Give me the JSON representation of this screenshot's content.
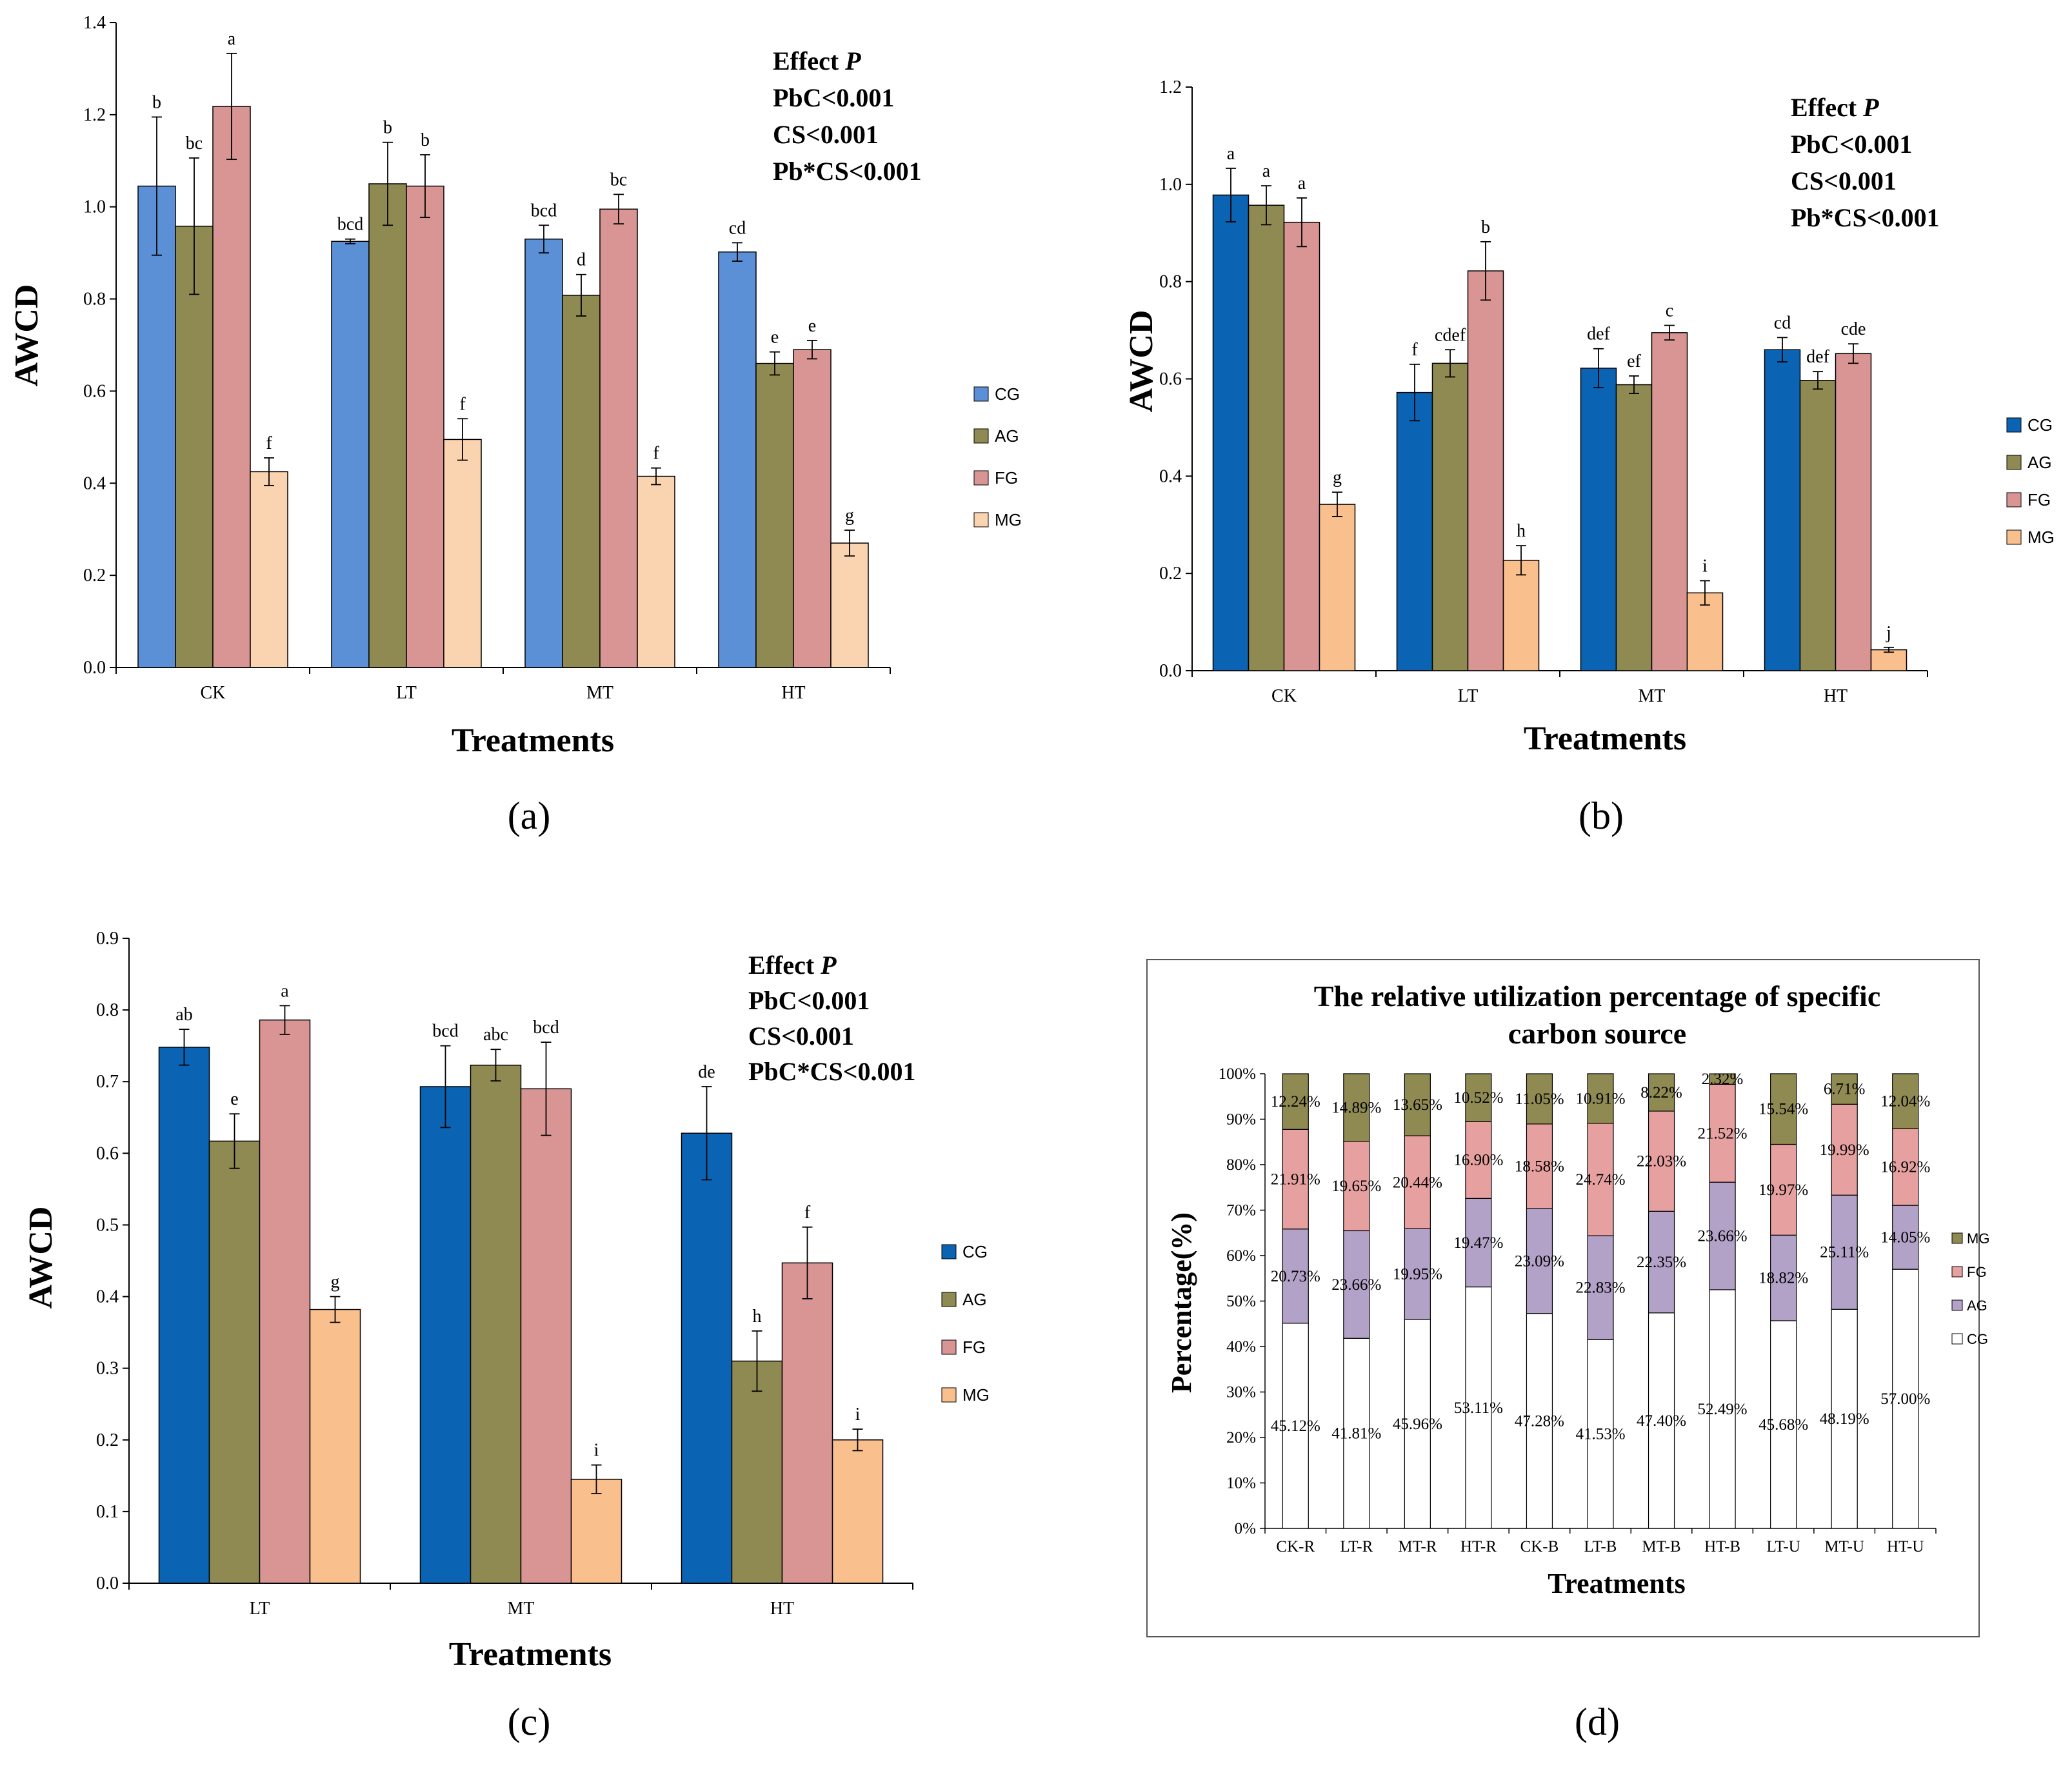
{
  "chart_data": [
    {
      "id": "a",
      "type": "bar",
      "panel_label": "(a)",
      "categories": [
        "CK",
        "LT",
        "MT",
        "HT"
      ],
      "ylabel": "AWCD",
      "xlabel": "Treatments",
      "ylim": [
        0,
        1.4
      ],
      "yticks": [
        "0.0",
        "0.2",
        "0.4",
        "0.6",
        "0.8",
        "1.0",
        "1.2",
        "1.4"
      ],
      "legend_position": "right",
      "stats_lines": [
        "Effect  P",
        "PbC<0.001",
        "CS<0.001",
        "Pb*CS<0.001"
      ],
      "series": [
        {
          "name": "CG",
          "color": "#5b8fd6",
          "values": [
            1.045,
            0.925,
            0.93,
            0.902
          ],
          "errors": [
            0.15,
            0.005,
            0.03,
            0.02
          ],
          "letters": [
            "b",
            "bcd",
            "bcd",
            "cd"
          ]
        },
        {
          "name": "AG",
          "color": "#8f8a52",
          "values": [
            0.958,
            1.05,
            0.808,
            0.66
          ],
          "errors": [
            0.148,
            0.09,
            0.045,
            0.025
          ],
          "letters": [
            "bc",
            "b",
            "d",
            "e"
          ]
        },
        {
          "name": "FG",
          "color": "#d99594",
          "values": [
            1.218,
            1.045,
            0.995,
            0.69
          ],
          "errors": [
            0.115,
            0.068,
            0.032,
            0.02
          ],
          "letters": [
            "a",
            "b",
            "bc",
            "e"
          ]
        },
        {
          "name": "MG",
          "color": "#fad4b0",
          "values": [
            0.425,
            0.495,
            0.415,
            0.27
          ],
          "errors": [
            0.03,
            0.045,
            0.018,
            0.028
          ],
          "letters": [
            "f",
            "f",
            "f",
            "g"
          ]
        }
      ]
    },
    {
      "id": "b",
      "type": "bar",
      "panel_label": "(b)",
      "categories": [
        "CK",
        "LT",
        "MT",
        "HT"
      ],
      "ylabel": "AWCD",
      "xlabel": "Treatments",
      "ylim": [
        0,
        1.2
      ],
      "yticks": [
        "0.0",
        "0.2",
        "0.4",
        "0.6",
        "0.8",
        "1.0",
        "1.2"
      ],
      "legend_position": "right",
      "stats_lines": [
        "Effect  P",
        "PbC<0.001",
        "CS<0.001",
        "Pb*CS<0.001"
      ],
      "series": [
        {
          "name": "CG",
          "color": "#0a63b3",
          "values": [
            0.978,
            0.572,
            0.622,
            0.66
          ],
          "errors": [
            0.055,
            0.058,
            0.04,
            0.025
          ],
          "letters": [
            "a",
            "f",
            "def",
            "cd"
          ]
        },
        {
          "name": "AG",
          "color": "#8f8a52",
          "values": [
            0.957,
            0.632,
            0.588,
            0.597
          ],
          "errors": [
            0.04,
            0.028,
            0.018,
            0.018
          ],
          "letters": [
            "a",
            "cdef",
            "ef",
            "def"
          ]
        },
        {
          "name": "FG",
          "color": "#d99594",
          "values": [
            0.922,
            0.822,
            0.695,
            0.652
          ],
          "errors": [
            0.05,
            0.06,
            0.015,
            0.02
          ],
          "letters": [
            "a",
            "b",
            "c",
            "cde"
          ]
        },
        {
          "name": "MG",
          "color": "#f9bf8c",
          "values": [
            0.342,
            0.227,
            0.16,
            0.043
          ],
          "errors": [
            0.025,
            0.03,
            0.025,
            0.005
          ],
          "letters": [
            "g",
            "h",
            "i",
            "j"
          ]
        }
      ]
    },
    {
      "id": "c",
      "type": "bar",
      "panel_label": "(c)",
      "categories": [
        "LT",
        "MT",
        "HT"
      ],
      "ylabel": "AWCD",
      "xlabel": "Treatments",
      "ylim": [
        0,
        0.9
      ],
      "yticks": [
        "0.0",
        "0.1",
        "0.2",
        "0.3",
        "0.4",
        "0.5",
        "0.6",
        "0.7",
        "0.8",
        "0.9"
      ],
      "legend_position": "right",
      "stats_lines": [
        "Effect  P",
        "PbC<0.001",
        "CS<0.001",
        "PbC*CS<0.001"
      ],
      "series": [
        {
          "name": "CG",
          "color": "#0a63b3",
          "values": [
            0.748,
            0.693,
            0.628
          ],
          "errors": [
            0.025,
            0.057,
            0.065
          ],
          "letters": [
            "ab",
            "bcd",
            "de"
          ]
        },
        {
          "name": "AG",
          "color": "#8f8a52",
          "values": [
            0.617,
            0.723,
            0.31
          ],
          "errors": [
            0.038,
            0.022,
            0.042
          ],
          "letters": [
            "e",
            "abc",
            "h"
          ]
        },
        {
          "name": "FG",
          "color": "#d99594",
          "values": [
            0.786,
            0.69,
            0.447
          ],
          "errors": [
            0.02,
            0.065,
            0.05
          ],
          "letters": [
            "a",
            "bcd",
            "f"
          ]
        },
        {
          "name": "MG",
          "color": "#f9bf8c",
          "values": [
            0.382,
            0.145,
            0.2
          ],
          "errors": [
            0.018,
            0.02,
            0.015
          ],
          "letters": [
            "g",
            "i",
            "i"
          ]
        }
      ]
    },
    {
      "id": "d",
      "type": "bar",
      "stacked": true,
      "panel_label": "(d)",
      "title_lines": [
        "The relative utilization percentage of specific",
        "carbon source"
      ],
      "categories": [
        "CK-R",
        "LT-R",
        "MT-R",
        "HT-R",
        "CK-B",
        "LT-B",
        "MT-B",
        "HT-B",
        "LT-U",
        "MT-U",
        "HT-U"
      ],
      "ylabel": "Percentage(%)",
      "xlabel": "Treatments",
      "ylim": [
        0,
        100
      ],
      "yticks": [
        "0%",
        "10%",
        "20%",
        "30%",
        "40%",
        "50%",
        "60%",
        "70%",
        "80%",
        "90%",
        "100%"
      ],
      "legend_position": "right",
      "legend_order": [
        "MG",
        "FG",
        "AG",
        "CG"
      ],
      "series": [
        {
          "name": "CG",
          "color": "#ffffff",
          "values": [
            45.12,
            41.81,
            45.96,
            53.11,
            47.28,
            41.53,
            47.4,
            52.49,
            45.68,
            48.19,
            57.0
          ],
          "labels": [
            "45.12%",
            "41.81%",
            "45.96%",
            "53.11%",
            "47.28%",
            "41.53%",
            "47.40%",
            "52.49%",
            "45.68%",
            "48.19%",
            "57.00%"
          ]
        },
        {
          "name": "AG",
          "color": "#b3a2c7",
          "values": [
            20.73,
            23.66,
            19.95,
            19.47,
            23.09,
            22.83,
            22.35,
            23.66,
            18.82,
            25.11,
            14.05
          ],
          "labels": [
            "20.73%",
            "23.66%",
            "19.95%",
            "19.47%",
            "23.09%",
            "22.83%",
            "22.35%",
            "23.66%",
            "18.82%",
            "25.11%",
            "14.05%"
          ]
        },
        {
          "name": "FG",
          "color": "#e6a0a0",
          "values": [
            21.91,
            19.65,
            20.44,
            16.9,
            18.58,
            24.74,
            22.03,
            21.52,
            19.97,
            19.99,
            16.92
          ],
          "labels": [
            "21.91%",
            "19.65%",
            "20.44%",
            "16.90%",
            "18.58%",
            "24.74%",
            "22.03%",
            "21.52%",
            "19.97%",
            "19.99%",
            "16.92%"
          ]
        },
        {
          "name": "MG",
          "color": "#8f8a52",
          "values": [
            12.24,
            14.89,
            13.65,
            10.52,
            11.05,
            10.91,
            8.22,
            2.32,
            15.54,
            6.71,
            12.04
          ],
          "labels": [
            "12.24%",
            "14.89%",
            "13.65%",
            "10.52%",
            "11.05%",
            "10.91%",
            "8.22%",
            "2.32%",
            "15.54%",
            "6.71%",
            "12.04%"
          ]
        }
      ]
    }
  ]
}
